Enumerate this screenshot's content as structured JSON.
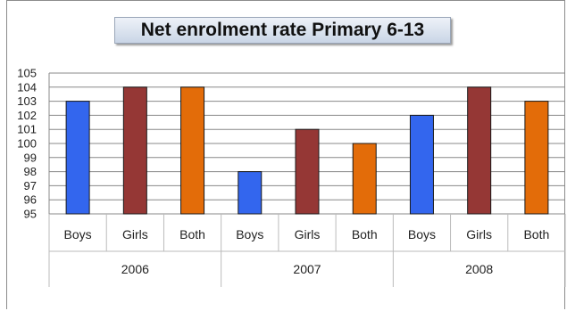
{
  "chart_data": {
    "type": "bar",
    "title": "Net enrolment rate Primary 6-13",
    "xlabel": "",
    "ylabel": "",
    "ylim": [
      95,
      105
    ],
    "yticks": [
      95,
      96,
      97,
      98,
      99,
      100,
      101,
      102,
      103,
      104,
      105
    ],
    "grid": true,
    "legend": "none",
    "groups": [
      "2006",
      "2007",
      "2008"
    ],
    "categories": [
      "Boys",
      "Girls",
      "Both",
      "Boys",
      "Girls",
      "Both",
      "Boys",
      "Girls",
      "Both"
    ],
    "values": [
      103,
      104,
      104,
      98,
      101,
      100,
      102,
      104,
      103
    ],
    "colors": {
      "Boys": "#3366ee",
      "Girls": "#953735",
      "Both": "#e36c09"
    }
  }
}
